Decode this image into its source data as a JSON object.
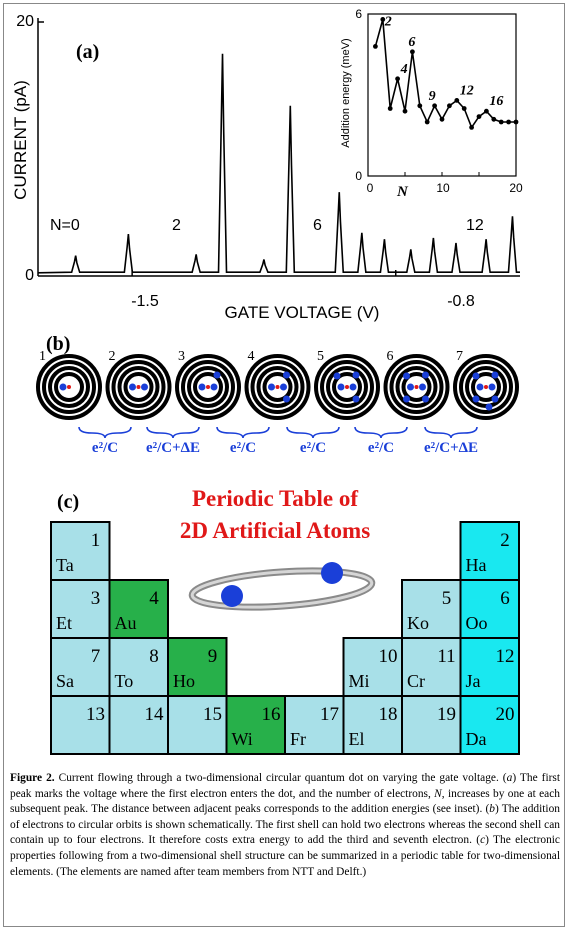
{
  "panel_a": {
    "label": "(a)",
    "y_axis_label": "CURRENT (pA)",
    "x_axis_label": "GATE VOLTAGE (V)",
    "y_ticks": [
      "20",
      "0"
    ],
    "x_ticks": [
      "-1.5",
      "-0.8"
    ],
    "n_annotations": [
      "N=0",
      "2",
      "6",
      "12"
    ],
    "inset": {
      "y_axis_label": "Addition energy (meV)",
      "x_axis_label": "N",
      "y_ticks": [
        "6",
        "0"
      ],
      "x_ticks": [
        "0",
        "10",
        "20"
      ],
      "peak_labels": [
        "2",
        "4",
        "6",
        "9",
        "12",
        "16"
      ]
    }
  },
  "chart_data": [
    {
      "type": "line",
      "title": "",
      "xlabel": "GATE VOLTAGE (V)",
      "ylabel": "CURRENT (pA)",
      "ylim": [
        0,
        20
      ],
      "x_ticks": [
        -1.5,
        -0.8
      ],
      "series": [
        {
          "values_description_free": true,
          "peaks": [
            {
              "x": -1.65,
              "y": 1.6
            },
            {
              "x": -1.51,
              "y": 3.3
            },
            {
              "x": -1.33,
              "y": 1.7
            },
            {
              "x": -1.26,
              "y": 17.5
            },
            {
              "x": -1.15,
              "y": 1.3
            },
            {
              "x": -1.08,
              "y": 13.4
            },
            {
              "x": -0.95,
              "y": 6.6
            },
            {
              "x": -0.89,
              "y": 3.4
            },
            {
              "x": -0.83,
              "y": 2.9
            },
            {
              "x": -0.76,
              "y": 2.1
            },
            {
              "x": -0.7,
              "y": 3.0
            },
            {
              "x": -0.64,
              "y": 2.6
            },
            {
              "x": -0.56,
              "y": 2.9
            },
            {
              "x": -0.49,
              "y": 4.7
            }
          ]
        }
      ]
    },
    {
      "type": "line",
      "title": "",
      "xlabel": "N",
      "ylabel": "Addition energy (meV)",
      "ylim": [
        0,
        6
      ],
      "xlim": [
        0,
        20
      ],
      "series": [
        {
          "x": [
            1,
            2,
            3,
            4,
            5,
            6,
            7,
            8,
            9,
            10,
            11,
            12,
            13,
            14,
            15,
            16,
            17,
            18,
            19,
            20
          ],
          "values": [
            4.8,
            5.8,
            2.5,
            3.6,
            2.4,
            4.6,
            2.6,
            2.0,
            2.6,
            2.1,
            2.6,
            2.8,
            2.5,
            1.8,
            2.2,
            2.4,
            2.1,
            2.0,
            2.0,
            2.0
          ]
        }
      ]
    }
  ],
  "panel_b": {
    "label": "(b)",
    "atoms": [
      {
        "n": "1",
        "electrons": 1
      },
      {
        "n": "2",
        "electrons": 2
      },
      {
        "n": "3",
        "electrons": 3
      },
      {
        "n": "4",
        "electrons": 4
      },
      {
        "n": "5",
        "electrons": 5
      },
      {
        "n": "6",
        "electrons": 6
      },
      {
        "n": "7",
        "electrons": 7
      }
    ],
    "energy_labels": [
      "e²/C",
      "e²/C+ΔE",
      "e²/C",
      "e²/C",
      "e²/C",
      "e²/C+ΔE"
    ],
    "colors": {
      "electron": "#1a3fd8",
      "brace": "#1a3fd8",
      "ring": "#000000"
    }
  },
  "panel_c": {
    "label": "(c)",
    "title_line1": "Periodic Table of",
    "title_line2": "2D Artificial Atoms",
    "title_color": "#e01818",
    "elements": [
      {
        "num": "1",
        "sym": "Ta",
        "color": "#a8e0e8"
      },
      {
        "num": "2",
        "sym": "Ha",
        "color": "#19e8f0"
      },
      {
        "num": "3",
        "sym": "Et",
        "color": "#a8e0e8"
      },
      {
        "num": "4",
        "sym": "Au",
        "color": "#27b04a"
      },
      {
        "num": "5",
        "sym": "Ko",
        "color": "#a8e0e8"
      },
      {
        "num": "6",
        "sym": "Oo",
        "color": "#19e8f0"
      },
      {
        "num": "7",
        "sym": "Sa",
        "color": "#a8e0e8"
      },
      {
        "num": "8",
        "sym": "To",
        "color": "#a8e0e8"
      },
      {
        "num": "9",
        "sym": "Ho",
        "color": "#27b04a"
      },
      {
        "num": "10",
        "sym": "Mi",
        "color": "#a8e0e8"
      },
      {
        "num": "11",
        "sym": "Cr",
        "color": "#a8e0e8"
      },
      {
        "num": "12",
        "sym": "Ja",
        "color": "#19e8f0"
      },
      {
        "num": "13",
        "sym": "",
        "color": "#a8e0e8"
      },
      {
        "num": "14",
        "sym": "",
        "color": "#a8e0e8"
      },
      {
        "num": "15",
        "sym": "",
        "color": "#a8e0e8"
      },
      {
        "num": "16",
        "sym": "Wi",
        "color": "#27b04a"
      },
      {
        "num": "17",
        "sym": "Fr",
        "color": "#a8e0e8"
      },
      {
        "num": "18",
        "sym": "El",
        "color": "#a8e0e8"
      },
      {
        "num": "19",
        "sym": "",
        "color": "#a8e0e8"
      },
      {
        "num": "20",
        "sym": "Da",
        "color": "#19e8f0"
      }
    ]
  },
  "caption": {
    "figure_label": "Figure 2.",
    "segments": [
      {
        "t": " Current flowing through a two-dimensional circular quantum dot on varying the gate voltage. (",
        "i": false
      },
      {
        "t": "a",
        "i": true
      },
      {
        "t": ") The first peak marks the voltage where the first electron enters the dot, and the number of electrons, ",
        "i": false
      },
      {
        "t": "N",
        "i": true
      },
      {
        "t": ", increases by one at each subsequent peak. The distance between adjacent peaks corresponds to the addition energies (see inset). (",
        "i": false
      },
      {
        "t": "b",
        "i": true
      },
      {
        "t": ") The addition of electrons to circular orbits is shown schematically. The first shell can hold two electrons whereas the second shell can contain up to four electrons. It therefore costs extra energy to add the third and seventh electron. (",
        "i": false
      },
      {
        "t": "c",
        "i": true
      },
      {
        "t": ") The electronic properties following from a two-dimensional shell structure can be summarized in a periodic table for two-dimensional elements. (The elements are named after team members from NTT and Delft.)",
        "i": false
      }
    ]
  }
}
